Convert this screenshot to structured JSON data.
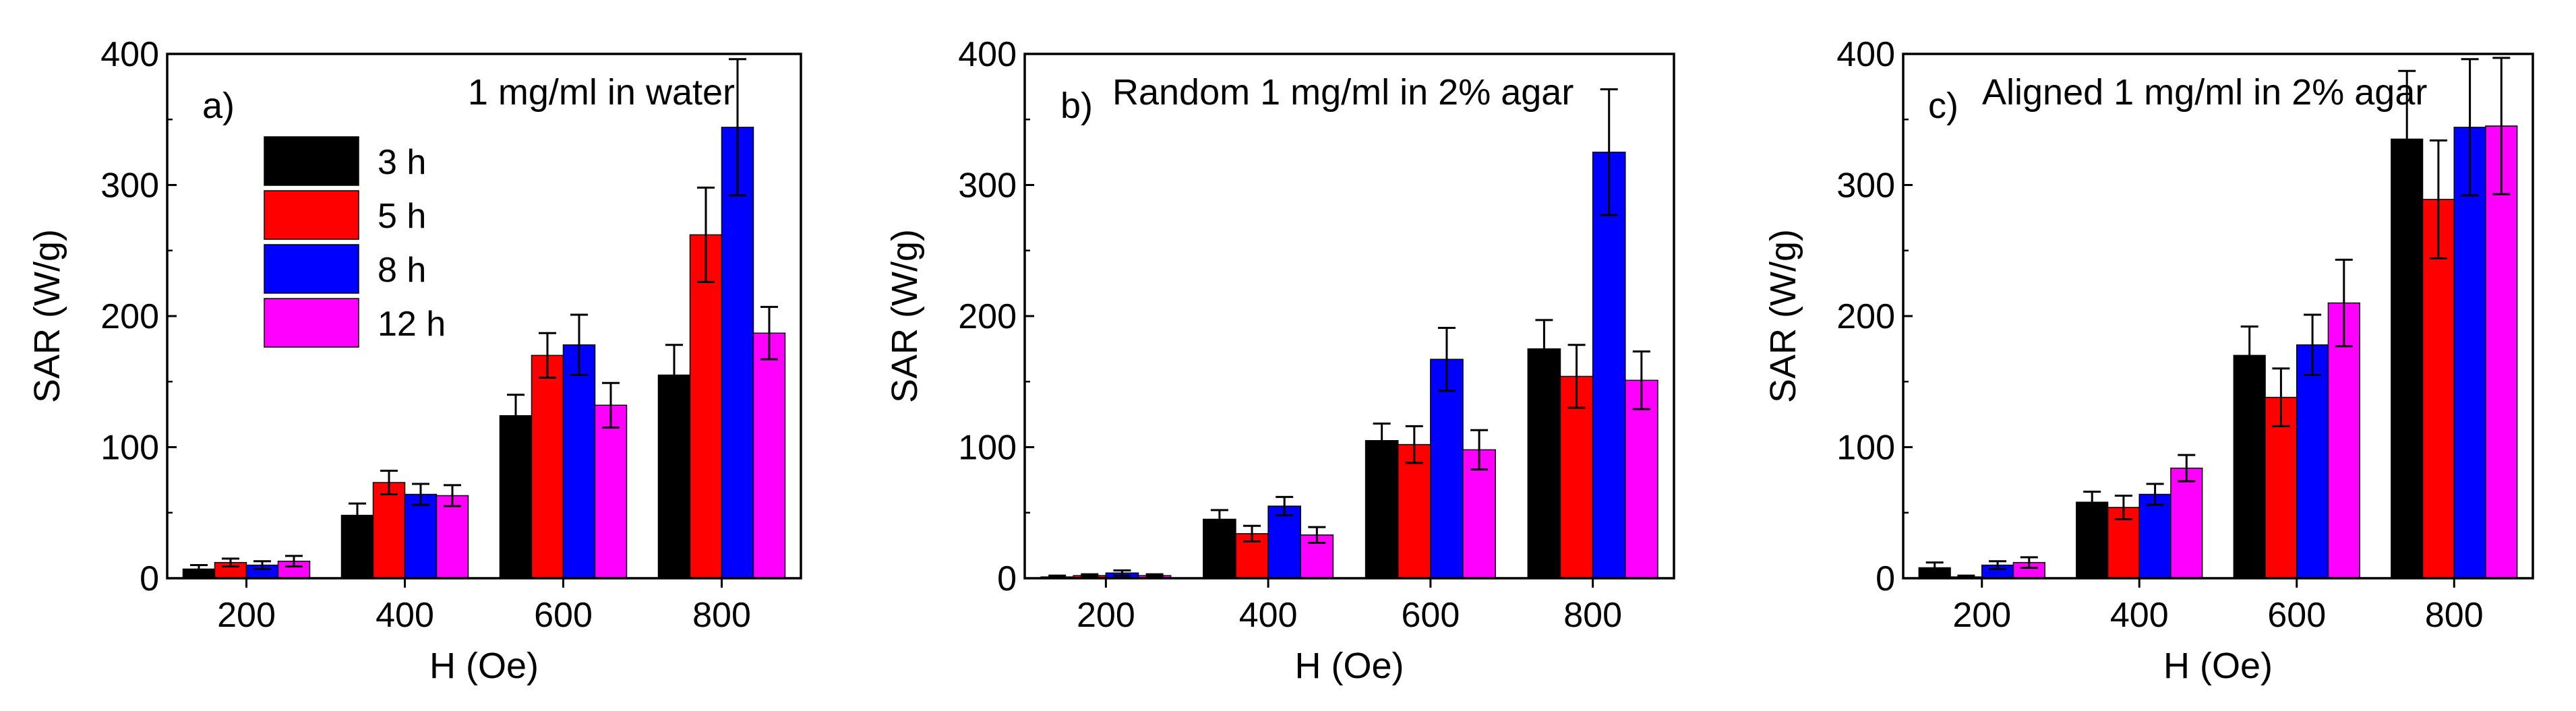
{
  "colors": {
    "3 h": "#000000",
    "5 h": "#ff0000",
    "8 h": "#0000ff",
    "12 h": "#ff00ff"
  },
  "chart_data": [
    {
      "type": "bar",
      "panel_label": "a)",
      "title": "1 mg/ml in water",
      "xlabel": "H (Oe)",
      "ylabel": "SAR (W/g)",
      "ylim": [
        0,
        400
      ],
      "yticks": [
        "0",
        "100",
        "200",
        "300",
        "400"
      ],
      "categories": [
        "200",
        "400",
        "600",
        "800"
      ],
      "legend": {
        "position": "top-left",
        "entries": [
          "3 h",
          "5 h",
          "8 h",
          "12 h"
        ]
      },
      "series": [
        {
          "name": "3 h",
          "values": [
            7,
            48,
            124,
            155
          ],
          "errors": [
            3,
            9,
            16,
            23
          ]
        },
        {
          "name": "5 h",
          "values": [
            12,
            73,
            170,
            262
          ],
          "errors": [
            3,
            9,
            17,
            36
          ]
        },
        {
          "name": "8 h",
          "values": [
            10,
            64,
            178,
            344
          ],
          "errors": [
            3,
            8,
            23,
            52
          ]
        },
        {
          "name": "12 h",
          "values": [
            13,
            63,
            132,
            187
          ],
          "errors": [
            4,
            8,
            17,
            20
          ]
        }
      ]
    },
    {
      "type": "bar",
      "panel_label": "b)",
      "title": "Random 1 mg/ml in 2% agar",
      "xlabel": "H (Oe)",
      "ylabel": "SAR (W/g)",
      "ylim": [
        0,
        400
      ],
      "yticks": [
        "0",
        "100",
        "200",
        "300",
        "400"
      ],
      "categories": [
        "200",
        "400",
        "600",
        "800"
      ],
      "series": [
        {
          "name": "3 h",
          "values": [
            1,
            45,
            105,
            175
          ],
          "errors": [
            1,
            7,
            13,
            22
          ]
        },
        {
          "name": "5 h",
          "values": [
            2,
            34,
            102,
            154
          ],
          "errors": [
            1,
            6,
            14,
            24
          ]
        },
        {
          "name": "8 h",
          "values": [
            4,
            55,
            167,
            325
          ],
          "errors": [
            2,
            7,
            24,
            48
          ]
        },
        {
          "name": "12 h",
          "values": [
            2,
            33,
            98,
            151
          ],
          "errors": [
            1,
            6,
            15,
            22
          ]
        }
      ]
    },
    {
      "type": "bar",
      "panel_label": "c)",
      "title": "Aligned 1 mg/ml in 2% agar",
      "xlabel": "H (Oe)",
      "ylabel": "SAR (W/g)",
      "ylim": [
        0,
        400
      ],
      "yticks": [
        "0",
        "100",
        "200",
        "300",
        "400"
      ],
      "categories": [
        "200",
        "400",
        "600",
        "800"
      ],
      "series": [
        {
          "name": "3 h",
          "values": [
            8,
            58,
            170,
            335
          ],
          "errors": [
            4,
            8,
            22,
            52
          ]
        },
        {
          "name": "5 h",
          "values": [
            1,
            54,
            138,
            289
          ],
          "errors": [
            1,
            9,
            22,
            45
          ]
        },
        {
          "name": "8 h",
          "values": [
            10,
            64,
            178,
            344
          ],
          "errors": [
            3,
            8,
            23,
            52
          ]
        },
        {
          "name": "12 h",
          "values": [
            12,
            84,
            210,
            345
          ],
          "errors": [
            4,
            10,
            33,
            52
          ]
        }
      ]
    }
  ]
}
